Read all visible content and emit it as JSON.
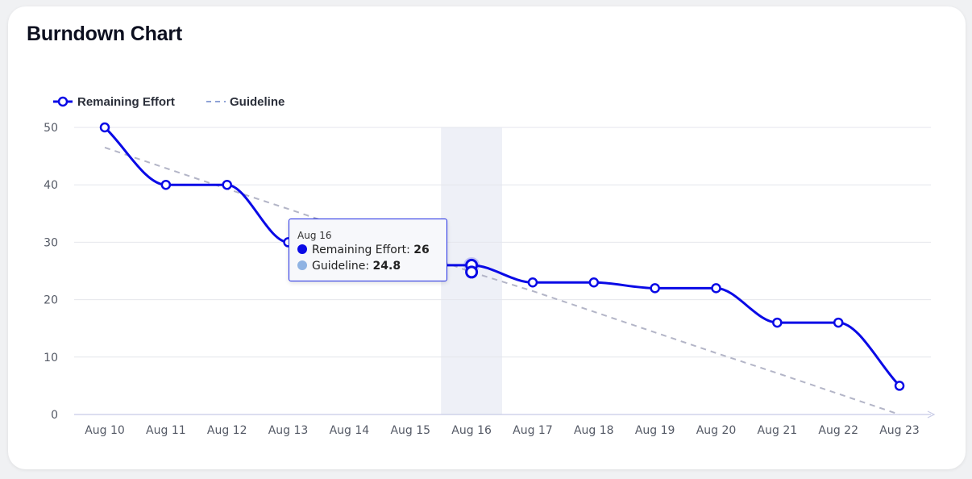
{
  "title": "Burndown Chart",
  "colors": {
    "remaining": "#0a0ae6",
    "guideline": "#b3b5c7",
    "guideline_legend": "#8ea2d6",
    "tooltip_guideline_dot": "#8fb3e3",
    "highlight": "#eef0f7",
    "grid": "#e4e6ec",
    "axis_text": "#555a66"
  },
  "tooltip": {
    "date": "Aug 16",
    "remaining_label": "Remaining Effort:",
    "remaining_value": "26",
    "guideline_label": "Guideline:",
    "guideline_value": "24.8"
  },
  "chart_data": {
    "type": "line",
    "title": "Burndown Chart",
    "categories": [
      "Aug 10",
      "Aug 11",
      "Aug 12",
      "Aug 13",
      "Aug 14",
      "Aug 15",
      "Aug 16",
      "Aug 17",
      "Aug 18",
      "Aug 19",
      "Aug 20",
      "Aug 21",
      "Aug 22",
      "Aug 23"
    ],
    "ylim": [
      0,
      50
    ],
    "yticks": [
      0,
      10,
      20,
      30,
      40,
      50
    ],
    "grid": true,
    "legend_position": "top-left",
    "highlighted_category": "Aug 16",
    "series": [
      {
        "name": "Remaining Effort",
        "style": "solid-markers",
        "values": [
          50,
          40,
          40,
          30,
          30,
          26,
          26,
          23,
          23,
          22,
          22,
          16,
          16,
          5
        ]
      },
      {
        "name": "Guideline",
        "style": "dashed",
        "values": [
          46.5,
          42.9,
          39.3,
          35.8,
          32.2,
          28.6,
          24.8,
          21.5,
          17.9,
          14.3,
          10.7,
          7.2,
          3.6,
          0
        ]
      }
    ]
  }
}
